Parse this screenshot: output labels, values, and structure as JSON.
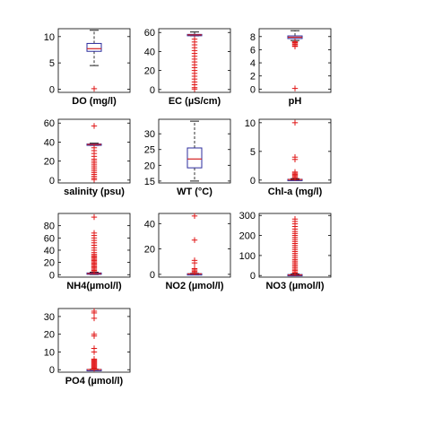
{
  "chart_data": [
    {
      "type": "box",
      "xlabel": "DO (mg/l)",
      "yticks": [
        0,
        5,
        10
      ],
      "ylim": [
        -0.6,
        11.5
      ],
      "box": {
        "whisker_low": 4.5,
        "q1": 7.2,
        "median": 7.7,
        "q3": 8.7,
        "whisker_high": 11.2
      },
      "outliers": [
        0.1
      ]
    },
    {
      "type": "box",
      "xlabel": "EC (µS/cm)",
      "yticks": [
        0,
        20,
        40,
        60
      ],
      "ylim": [
        -3,
        64
      ],
      "box": {
        "whisker_low": 56.5,
        "q1": 57.0,
        "median": 57.5,
        "q3": 58.0,
        "whisker_high": 60.5
      },
      "outliers": [
        0.5,
        2,
        5,
        8,
        11,
        14,
        17,
        20,
        23,
        26,
        29,
        32,
        35,
        38,
        41,
        44,
        47,
        50,
        53
      ]
    },
    {
      "type": "box",
      "xlabel": "pH",
      "yticks": [
        0,
        2,
        4,
        6,
        8
      ],
      "ylim": [
        -0.5,
        9.2
      ],
      "box": {
        "whisker_low": 7.4,
        "q1": 7.7,
        "median": 7.9,
        "q3": 8.1,
        "whisker_high": 8.9
      },
      "outliers": [
        0.1,
        6.5,
        6.6,
        6.8,
        7.0,
        7.1,
        7.2
      ]
    },
    {
      "type": "box",
      "xlabel": "salinity (psu)",
      "yticks": [
        0,
        20,
        40,
        60
      ],
      "ylim": [
        -3,
        64
      ],
      "box": {
        "whisker_low": 36.5,
        "q1": 37.0,
        "median": 37.5,
        "q3": 38.0,
        "whisker_high": 38.8
      },
      "outliers": [
        0.5,
        2,
        4,
        6,
        8,
        10,
        12,
        14,
        16,
        18,
        20,
        22,
        25,
        28,
        31,
        34,
        57
      ]
    },
    {
      "type": "box",
      "xlabel": "WT (°C)",
      "yticks": [
        15,
        20,
        25,
        30
      ],
      "ylim": [
        14.4,
        34.6
      ],
      "box": {
        "whisker_low": 15.0,
        "q1": 19.2,
        "median": 22.0,
        "q3": 25.5,
        "whisker_high": 34.0
      },
      "outliers": []
    },
    {
      "type": "box",
      "xlabel": "Chl-a (mg/l)",
      "yticks": [
        0,
        5,
        10
      ],
      "ylim": [
        -0.5,
        10.6
      ],
      "box": {
        "whisker_low": 0.02,
        "q1": 0.06,
        "median": 0.1,
        "q3": 0.14,
        "whisker_high": 0.25
      },
      "outliers": [
        0.4,
        0.6,
        0.8,
        1.0,
        1.2,
        1.4,
        3.6,
        4.0,
        10.0
      ]
    },
    {
      "type": "box",
      "xlabel": "NH4(µmol/l)",
      "yticks": [
        0,
        20,
        40,
        60,
        80
      ],
      "ylim": [
        -4,
        100
      ],
      "box": {
        "whisker_low": 0.2,
        "q1": 1.0,
        "median": 1.8,
        "q3": 2.8,
        "whisker_high": 4.0
      },
      "outliers": [
        5,
        7,
        9,
        11,
        13,
        15,
        17,
        19,
        21,
        23,
        25,
        27,
        29,
        31,
        33,
        36,
        40,
        44,
        48,
        52,
        56,
        60,
        64,
        68,
        94
      ]
    },
    {
      "type": "box",
      "xlabel": "NO2 (µmol/l)",
      "yticks": [
        0,
        20,
        40
      ],
      "ylim": [
        -2.2,
        48
      ],
      "box": {
        "whisker_low": 0.05,
        "q1": 0.2,
        "median": 0.35,
        "q3": 0.5,
        "whisker_high": 0.8
      },
      "outliers": [
        1.5,
        2.5,
        3.5,
        4.5,
        9,
        11,
        27,
        46
      ]
    },
    {
      "type": "box",
      "xlabel": "NO3 (µmol/l)",
      "yticks": [
        0,
        100,
        200,
        300
      ],
      "ylim": [
        -8,
        310
      ],
      "box": {
        "whisker_low": 0.5,
        "q1": 2,
        "median": 3,
        "q3": 5,
        "whisker_high": 8
      },
      "outliers": [
        12,
        18,
        25,
        32,
        40,
        48,
        56,
        64,
        72,
        80,
        90,
        100,
        110,
        120,
        130,
        140,
        150,
        160,
        170,
        180,
        190,
        200,
        210,
        220,
        232,
        245,
        258,
        270,
        282
      ]
    },
    {
      "type": "box",
      "xlabel": "PO4 (µmol/l)",
      "yticks": [
        0,
        10,
        20,
        30
      ],
      "ylim": [
        -1.4,
        34.5
      ],
      "box": {
        "whisker_low": 0.01,
        "q1": 0.05,
        "median": 0.1,
        "q3": 0.15,
        "whisker_high": 0.3
      },
      "outliers": [
        0.6,
        1.0,
        1.5,
        2.0,
        2.5,
        3.0,
        3.5,
        4.0,
        4.5,
        5.0,
        5.5,
        6.0,
        10,
        12,
        19,
        20,
        29,
        32,
        33
      ]
    }
  ],
  "colors": {
    "box": "#2b2b9c",
    "median": "#d42020",
    "outlier": "#e01515",
    "whisker": "#000000",
    "axis": "#000000"
  }
}
